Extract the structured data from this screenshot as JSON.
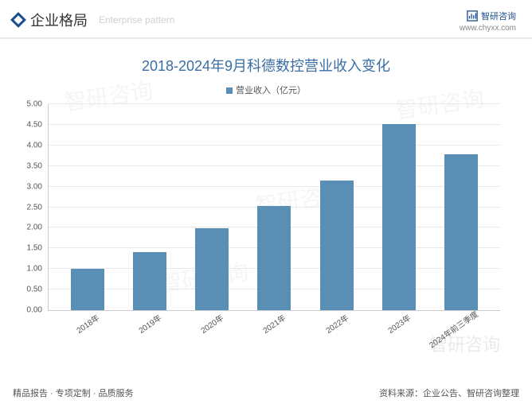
{
  "header": {
    "title": "企业格局",
    "subtitle": "Enterprise pattern",
    "brand": "智研咨询",
    "url": "www.chyxx.com"
  },
  "chart": {
    "type": "bar",
    "title": "2018-2024年9月科德数控营业收入变化",
    "legend_label": "营业收入（亿元）",
    "categories": [
      "2018年",
      "2019年",
      "2020年",
      "2021年",
      "2022年",
      "2023年",
      "2024年前三季度"
    ],
    "values": [
      1.0,
      1.4,
      1.98,
      2.53,
      3.15,
      4.52,
      3.78
    ],
    "bar_color": "#5a8fb5",
    "ylim": [
      0,
      5.0
    ],
    "ytick_step": 0.5,
    "yticks": [
      "0.00",
      "0.50",
      "1.00",
      "1.50",
      "2.00",
      "2.50",
      "3.00",
      "3.50",
      "4.00",
      "4.50",
      "5.00"
    ],
    "grid_color": "#e8e8e8",
    "background_color": "#ffffff",
    "title_color": "#3a6ea5",
    "title_fontsize": 18,
    "label_fontsize": 10
  },
  "footer": {
    "left": "精品报告 · 专项定制 · 品质服务",
    "right": "资料来源：企业公告、智研咨询整理"
  },
  "watermark": "智研咨询"
}
